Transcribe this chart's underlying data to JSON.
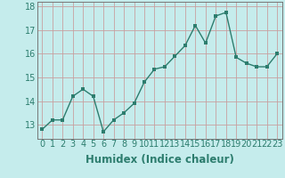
{
  "x": [
    0,
    1,
    2,
    3,
    4,
    5,
    6,
    7,
    8,
    9,
    10,
    11,
    12,
    13,
    14,
    15,
    16,
    17,
    18,
    19,
    20,
    21,
    22,
    23
  ],
  "y": [
    12.8,
    13.2,
    13.2,
    14.2,
    14.5,
    14.2,
    12.7,
    13.2,
    13.5,
    13.9,
    14.8,
    15.35,
    15.45,
    15.9,
    16.35,
    17.2,
    16.45,
    17.6,
    17.75,
    15.85,
    15.6,
    15.45,
    15.45,
    16.0
  ],
  "line_color": "#2d7d6e",
  "marker_color": "#2d7d6e",
  "bg_color": "#c5ecec",
  "grid_color": "#c8a0a0",
  "xlabel": "Humidex (Indice chaleur)",
  "xlim": [
    -0.5,
    23.5
  ],
  "ylim": [
    12.4,
    18.2
  ],
  "yticks": [
    13,
    14,
    15,
    16,
    17,
    18
  ],
  "xtick_labels": [
    "0",
    "1",
    "2",
    "3",
    "4",
    "5",
    "6",
    "7",
    "8",
    "9",
    "10",
    "11",
    "12",
    "13",
    "14",
    "15",
    "16",
    "17",
    "18",
    "19",
    "20",
    "21",
    "22",
    "23"
  ],
  "xlabel_fontsize": 8.5,
  "tick_fontsize": 7,
  "marker_size": 2.5,
  "line_width": 1.0
}
